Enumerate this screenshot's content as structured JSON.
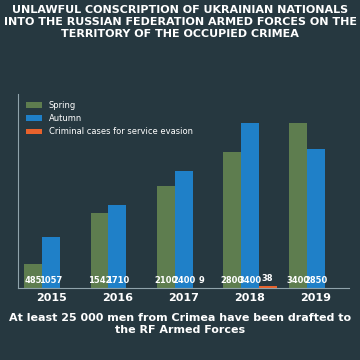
{
  "chart_data": {
    "type": "bar",
    "title": "UNLAWFUL CONSCRIPTION OF UKRAINIAN NATIONALS INTO THE RUSSIAN FEDERATION ARMED FORCES ON THE TERRITORY OF THE OCCUPIED CRIMEA",
    "annotation": "At least 25 000 men from Crimea have been drafted to the RF Armed Forces",
    "categories": [
      "2015",
      "2016",
      "2017",
      "2018",
      "2019"
    ],
    "series": [
      {
        "name": "Spring",
        "color": "#5e7d4f",
        "values": [
          485,
          1542,
          2100,
          2800,
          3400
        ]
      },
      {
        "name": "Autumn",
        "color": "#1f80c8",
        "values": [
          1057,
          1710,
          2400,
          3400,
          2850
        ]
      },
      {
        "name": "Criminal cases for service evasion",
        "color": "#e8622c",
        "values": [
          null,
          null,
          9,
          38,
          null
        ]
      }
    ],
    "ylim": [
      0,
      4000
    ],
    "legend": "upper left",
    "data_labels": true,
    "tick_labels": "x",
    "grid": false
  }
}
